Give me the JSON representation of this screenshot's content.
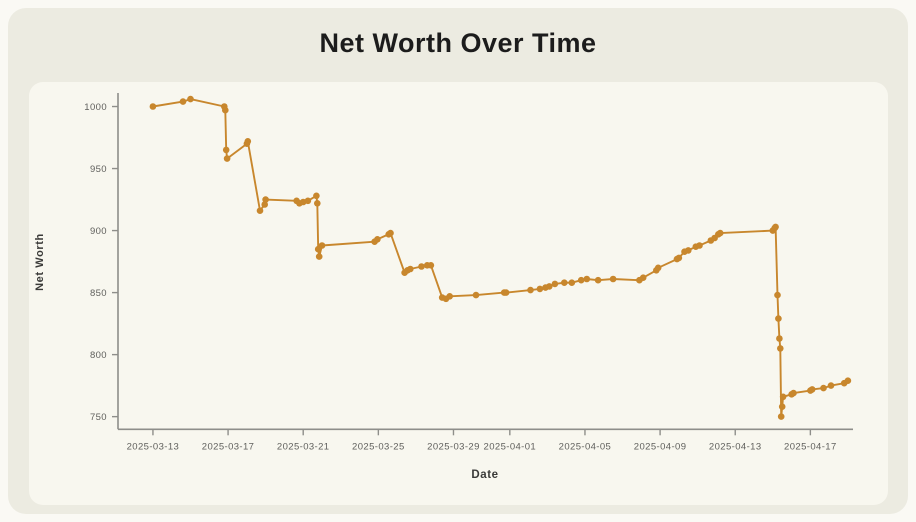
{
  "title": "Net Worth Over Time",
  "colors": {
    "page_background": "#FAF9F4",
    "panel_background": "#ECEBE1",
    "card_background": "#F8F7EF",
    "line": "#C8872D",
    "marker": "#C8872D",
    "axis": "#8E8E8A",
    "tick_text": "#5F5F5C",
    "title_text": "#1C1C1C",
    "axis_label_text": "#3A3A38"
  },
  "chart_data": {
    "type": "line",
    "title": "Net Worth Over Time",
    "xlabel": "Date",
    "ylabel": "Net Worth",
    "x_unit": "days since 2025-03-13 (fractional = intraday time)",
    "x_start_date": "2025-03-13",
    "grid": false,
    "legend": "none",
    "markers": true,
    "xlim": [
      -1.86,
      37.27
    ],
    "ylim": [
      739.8,
      1010.9
    ],
    "x_ticks": [
      {
        "d": 0,
        "label": "2025-03-13"
      },
      {
        "d": 4,
        "label": "2025-03-17"
      },
      {
        "d": 8,
        "label": "2025-03-21"
      },
      {
        "d": 12,
        "label": "2025-03-25"
      },
      {
        "d": 16,
        "label": "2025-03-29"
      },
      {
        "d": 19,
        "label": "2025-04-01"
      },
      {
        "d": 23,
        "label": "2025-04-05"
      },
      {
        "d": 27,
        "label": "2025-04-09"
      },
      {
        "d": 31,
        "label": "2025-04-13"
      },
      {
        "d": 35,
        "label": "2025-04-17"
      }
    ],
    "y_ticks": [
      750,
      800,
      850,
      900,
      950,
      1000
    ],
    "series": [
      {
        "name": "Net Worth",
        "points": [
          [
            0.0,
            1000
          ],
          [
            1.6,
            1004
          ],
          [
            2.0,
            1006
          ],
          [
            3.8,
            1000
          ],
          [
            3.85,
            997
          ],
          [
            3.9,
            965
          ],
          [
            3.95,
            958
          ],
          [
            5.0,
            970
          ],
          [
            5.05,
            972
          ],
          [
            5.7,
            916
          ],
          [
            5.95,
            921
          ],
          [
            6.0,
            925
          ],
          [
            7.65,
            924
          ],
          [
            7.8,
            922
          ],
          [
            8.0,
            923
          ],
          [
            8.25,
            924
          ],
          [
            8.7,
            928
          ],
          [
            8.75,
            922
          ],
          [
            8.8,
            885
          ],
          [
            8.85,
            879
          ],
          [
            9.0,
            888
          ],
          [
            11.8,
            891
          ],
          [
            11.95,
            893
          ],
          [
            12.55,
            897
          ],
          [
            12.65,
            898
          ],
          [
            13.4,
            866
          ],
          [
            13.55,
            868
          ],
          [
            13.7,
            869
          ],
          [
            14.3,
            871
          ],
          [
            14.6,
            872
          ],
          [
            14.8,
            872
          ],
          [
            15.4,
            846
          ],
          [
            15.6,
            845
          ],
          [
            15.8,
            847
          ],
          [
            17.2,
            848
          ],
          [
            18.7,
            850
          ],
          [
            18.8,
            850
          ],
          [
            20.1,
            852
          ],
          [
            20.6,
            853
          ],
          [
            20.9,
            854
          ],
          [
            21.1,
            855
          ],
          [
            21.4,
            857
          ],
          [
            21.9,
            858
          ],
          [
            22.3,
            858
          ],
          [
            22.8,
            860
          ],
          [
            23.1,
            861
          ],
          [
            23.7,
            860
          ],
          [
            24.5,
            861
          ],
          [
            25.9,
            860
          ],
          [
            26.1,
            862
          ],
          [
            26.8,
            868
          ],
          [
            26.9,
            870
          ],
          [
            27.9,
            877
          ],
          [
            28.0,
            878
          ],
          [
            28.3,
            883
          ],
          [
            28.5,
            884
          ],
          [
            28.9,
            887
          ],
          [
            29.1,
            888
          ],
          [
            29.7,
            892
          ],
          [
            29.9,
            894
          ],
          [
            30.1,
            897
          ],
          [
            30.2,
            898
          ],
          [
            33.0,
            900
          ],
          [
            33.1,
            902
          ],
          [
            33.15,
            903
          ],
          [
            33.25,
            848
          ],
          [
            33.3,
            829
          ],
          [
            33.35,
            813
          ],
          [
            33.4,
            805
          ],
          [
            33.45,
            750
          ],
          [
            33.5,
            758
          ],
          [
            33.55,
            766
          ],
          [
            34.0,
            768
          ],
          [
            34.1,
            769
          ],
          [
            35.0,
            771
          ],
          [
            35.1,
            772
          ],
          [
            35.7,
            773
          ],
          [
            36.1,
            775
          ],
          [
            36.8,
            777
          ],
          [
            37.0,
            779
          ]
        ]
      }
    ]
  },
  "labels": {
    "y_axis": "Net Worth",
    "x_axis": "Date"
  }
}
